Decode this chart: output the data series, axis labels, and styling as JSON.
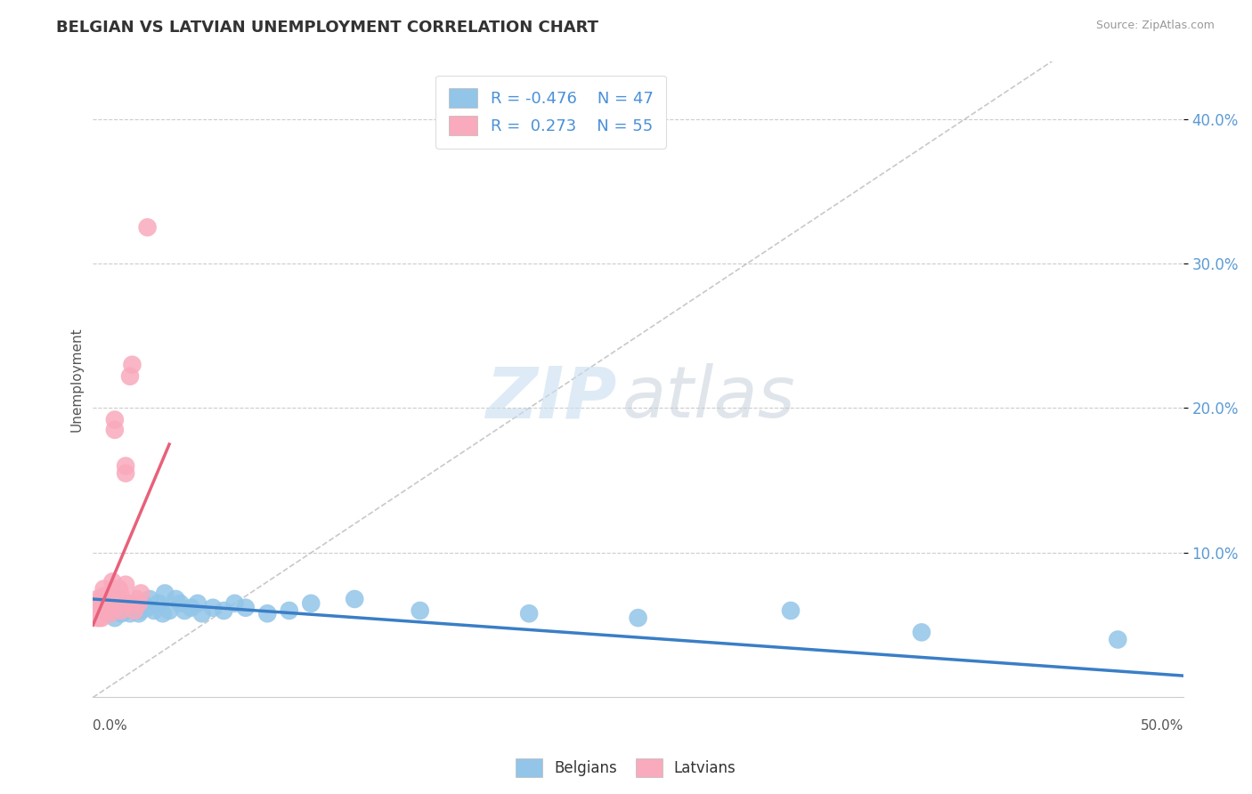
{
  "title": "BELGIAN VS LATVIAN UNEMPLOYMENT CORRELATION CHART",
  "source_text": "Source: ZipAtlas.com",
  "ylabel": "Unemployment",
  "ytick_labels": [
    "10.0%",
    "20.0%",
    "30.0%",
    "40.0%"
  ],
  "ytick_values": [
    0.1,
    0.2,
    0.3,
    0.4
  ],
  "xlim": [
    0.0,
    0.5
  ],
  "ylim": [
    0.0,
    0.44
  ],
  "blue_color": "#92C5E8",
  "pink_color": "#F9AABC",
  "blue_line_color": "#3A7EC6",
  "pink_line_color": "#E8607A",
  "blue_R": -0.476,
  "blue_N": 47,
  "pink_R": 0.273,
  "pink_N": 55,
  "blue_scatter_x": [
    0.005,
    0.006,
    0.007,
    0.008,
    0.009,
    0.01,
    0.01,
    0.011,
    0.012,
    0.013,
    0.014,
    0.015,
    0.016,
    0.017,
    0.018,
    0.019,
    0.02,
    0.021,
    0.022,
    0.023,
    0.025,
    0.026,
    0.028,
    0.03,
    0.032,
    0.033,
    0.035,
    0.038,
    0.04,
    0.042,
    0.045,
    0.048,
    0.05,
    0.055,
    0.06,
    0.065,
    0.07,
    0.08,
    0.09,
    0.1,
    0.12,
    0.15,
    0.2,
    0.25,
    0.32,
    0.38,
    0.47
  ],
  "blue_scatter_y": [
    0.062,
    0.065,
    0.058,
    0.06,
    0.063,
    0.055,
    0.068,
    0.06,
    0.065,
    0.058,
    0.062,
    0.06,
    0.065,
    0.058,
    0.063,
    0.06,
    0.062,
    0.058,
    0.06,
    0.065,
    0.062,
    0.068,
    0.06,
    0.065,
    0.058,
    0.072,
    0.06,
    0.068,
    0.065,
    0.06,
    0.062,
    0.065,
    0.058,
    0.062,
    0.06,
    0.065,
    0.062,
    0.058,
    0.06,
    0.065,
    0.068,
    0.06,
    0.058,
    0.055,
    0.06,
    0.045,
    0.04
  ],
  "pink_scatter_x": [
    0.001,
    0.001,
    0.002,
    0.002,
    0.002,
    0.002,
    0.003,
    0.003,
    0.003,
    0.003,
    0.003,
    0.004,
    0.004,
    0.004,
    0.004,
    0.004,
    0.005,
    0.005,
    0.005,
    0.005,
    0.005,
    0.005,
    0.006,
    0.006,
    0.006,
    0.007,
    0.007,
    0.007,
    0.008,
    0.008,
    0.008,
    0.009,
    0.009,
    0.01,
    0.01,
    0.01,
    0.01,
    0.01,
    0.011,
    0.012,
    0.012,
    0.013,
    0.013,
    0.014,
    0.015,
    0.015,
    0.015,
    0.016,
    0.017,
    0.018,
    0.019,
    0.02,
    0.021,
    0.022,
    0.025
  ],
  "pink_scatter_y": [
    0.062,
    0.058,
    0.06,
    0.065,
    0.055,
    0.068,
    0.058,
    0.062,
    0.055,
    0.065,
    0.06,
    0.058,
    0.062,
    0.068,
    0.055,
    0.06,
    0.063,
    0.058,
    0.065,
    0.06,
    0.07,
    0.075,
    0.062,
    0.068,
    0.065,
    0.06,
    0.062,
    0.065,
    0.058,
    0.072,
    0.068,
    0.065,
    0.08,
    0.062,
    0.068,
    0.075,
    0.185,
    0.192,
    0.065,
    0.065,
    0.075,
    0.06,
    0.07,
    0.065,
    0.078,
    0.155,
    0.16,
    0.065,
    0.222,
    0.23,
    0.06,
    0.068,
    0.065,
    0.072,
    0.325
  ],
  "blue_line_x": [
    0.0,
    0.5
  ],
  "blue_line_y_start": 0.068,
  "blue_line_y_end": 0.015,
  "pink_line_x": [
    0.0,
    0.035
  ],
  "pink_line_y_start": 0.05,
  "pink_line_y_end": 0.175,
  "diag_line_x": [
    0.0,
    0.44
  ],
  "diag_line_y": [
    0.0,
    0.44
  ]
}
